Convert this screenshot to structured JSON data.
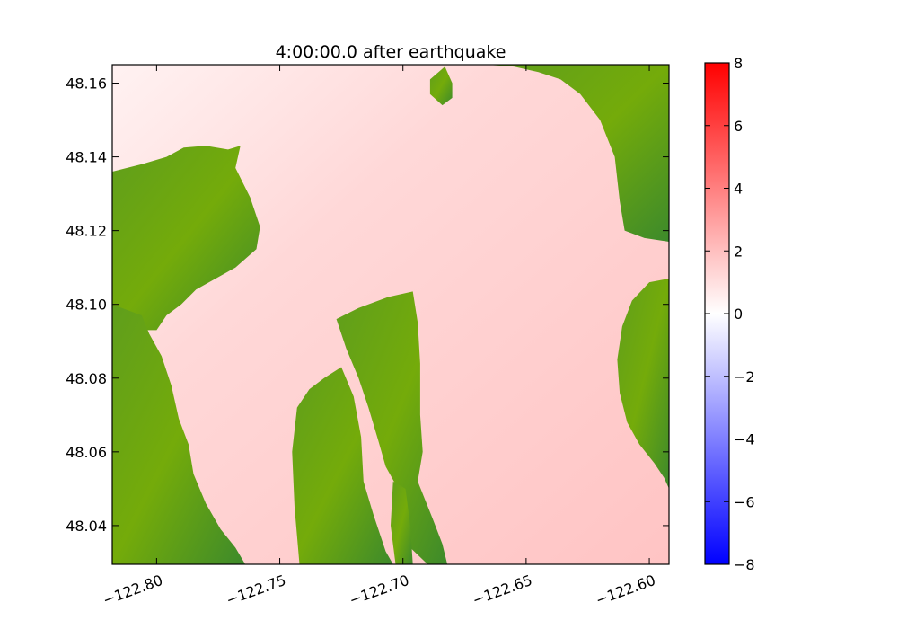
{
  "chart_data": {
    "type": "heatmap",
    "title": "4:00:00.0 after earthquake",
    "xlabel": "",
    "ylabel": "",
    "xlim": [
      -122.818,
      -122.592
    ],
    "ylim": [
      48.0295,
      48.165
    ],
    "x_ticks": [
      -122.8,
      -122.75,
      -122.7,
      -122.65,
      -122.6
    ],
    "x_tick_labels": [
      "−122.80",
      "−122.75",
      "−122.70",
      "−122.65",
      "−122.60"
    ],
    "y_ticks": [
      48.04,
      48.06,
      48.08,
      48.1,
      48.12,
      48.14,
      48.16
    ],
    "y_tick_labels": [
      "48.04",
      "48.06",
      "48.08",
      "48.10",
      "48.12",
      "48.14",
      "48.16"
    ],
    "grid": false,
    "colorbar": {
      "min": -8,
      "max": 8,
      "ticks": [
        8,
        6,
        4,
        2,
        0,
        -2,
        -4,
        -6,
        -8
      ],
      "tick_labels": [
        "8",
        "6",
        "4",
        "2",
        "0",
        "−2",
        "−4",
        "−6",
        "−8"
      ],
      "colors": [
        "#0000ff",
        "#ffffff",
        "#ff0000"
      ]
    },
    "water_color": "#ffc8c8",
    "land_colors": [
      "#6aa80a",
      "#3b8a2a"
    ],
    "land_regions": [
      {
        "name": "west-upper",
        "points": [
          [
            -122.818,
            48.136
          ],
          [
            -122.806,
            48.138
          ],
          [
            -122.796,
            48.14
          ],
          [
            -122.789,
            48.1425
          ],
          [
            -122.78,
            48.143
          ],
          [
            -122.771,
            48.142
          ],
          [
            -122.766,
            48.143
          ],
          [
            -122.768,
            48.137
          ],
          [
            -122.762,
            48.129
          ],
          [
            -122.758,
            48.121
          ],
          [
            -122.7595,
            48.115
          ],
          [
            -122.768,
            48.11
          ],
          [
            -122.776,
            48.107
          ],
          [
            -122.784,
            48.104
          ],
          [
            -122.79,
            48.1
          ],
          [
            -122.796,
            48.097
          ],
          [
            -122.8,
            48.093
          ],
          [
            -122.818,
            48.093
          ]
        ]
      },
      {
        "name": "west-lower",
        "points": [
          [
            -122.818,
            48.1
          ],
          [
            -122.806,
            48.097
          ],
          [
            -122.803,
            48.092
          ],
          [
            -122.798,
            48.086
          ],
          [
            -122.794,
            48.078
          ],
          [
            -122.791,
            48.069
          ],
          [
            -122.787,
            48.062
          ],
          [
            -122.785,
            48.054
          ],
          [
            -122.78,
            48.046
          ],
          [
            -122.774,
            48.039
          ],
          [
            -122.768,
            48.034
          ],
          [
            -122.764,
            48.0295
          ],
          [
            -122.818,
            48.0295
          ]
        ]
      },
      {
        "name": "middle-strip",
        "points": [
          [
            -122.732,
            48.08
          ],
          [
            -122.725,
            48.083
          ],
          [
            -122.72,
            48.075
          ],
          [
            -122.717,
            48.064
          ],
          [
            -122.716,
            48.052
          ],
          [
            -122.712,
            48.043
          ],
          [
            -122.707,
            48.033
          ],
          [
            -122.704,
            48.0295
          ],
          [
            -122.742,
            48.0295
          ],
          [
            -122.744,
            48.045
          ],
          [
            -122.745,
            48.06
          ],
          [
            -122.743,
            48.072
          ],
          [
            -122.738,
            48.077
          ]
        ]
      },
      {
        "name": "east-peninsula",
        "points": [
          [
            -122.727,
            48.096
          ],
          [
            -122.718,
            48.099
          ],
          [
            -122.706,
            48.102
          ],
          [
            -122.696,
            48.1035
          ],
          [
            -122.694,
            48.095
          ],
          [
            -122.693,
            48.084
          ],
          [
            -122.693,
            48.07
          ],
          [
            -122.692,
            48.06
          ],
          [
            -122.694,
            48.052
          ],
          [
            -122.688,
            48.042
          ],
          [
            -122.684,
            48.035
          ],
          [
            -122.682,
            48.0295
          ],
          [
            -122.69,
            48.0295
          ],
          [
            -122.697,
            48.034
          ],
          [
            -122.7,
            48.042
          ],
          [
            -122.702,
            48.05
          ],
          [
            -122.707,
            48.056
          ],
          [
            -122.71,
            48.063
          ],
          [
            -122.714,
            48.072
          ],
          [
            -122.718,
            48.08
          ],
          [
            -122.723,
            48.088
          ]
        ]
      },
      {
        "name": "small-bar",
        "points": [
          [
            -122.704,
            48.052
          ],
          [
            -122.699,
            48.05
          ],
          [
            -122.697,
            48.04
          ],
          [
            -122.696,
            48.0295
          ],
          [
            -122.703,
            48.0295
          ],
          [
            -122.705,
            48.04
          ]
        ]
      },
      {
        "name": "north-islet",
        "points": [
          [
            -122.689,
            48.161
          ],
          [
            -122.683,
            48.1645
          ],
          [
            -122.68,
            48.16
          ],
          [
            -122.68,
            48.156
          ],
          [
            -122.684,
            48.154
          ],
          [
            -122.689,
            48.157
          ]
        ]
      },
      {
        "name": "east-upper",
        "points": [
          [
            -122.666,
            48.165
          ],
          [
            -122.592,
            48.165
          ],
          [
            -122.592,
            48.117
          ],
          [
            -122.602,
            48.118
          ],
          [
            -122.61,
            48.12
          ],
          [
            -122.612,
            48.128
          ],
          [
            -122.614,
            48.14
          ],
          [
            -122.62,
            48.15
          ],
          [
            -122.628,
            48.157
          ],
          [
            -122.636,
            48.161
          ],
          [
            -122.645,
            48.163
          ],
          [
            -122.655,
            48.1645
          ]
        ]
      },
      {
        "name": "east-lower",
        "points": [
          [
            -122.592,
            48.107
          ],
          [
            -122.6,
            48.106
          ],
          [
            -122.607,
            48.101
          ],
          [
            -122.611,
            48.094
          ],
          [
            -122.613,
            48.085
          ],
          [
            -122.612,
            48.076
          ],
          [
            -122.609,
            48.068
          ],
          [
            -122.604,
            48.062
          ],
          [
            -122.598,
            48.057
          ],
          [
            -122.594,
            48.053
          ],
          [
            -122.592,
            48.05
          ]
        ]
      }
    ]
  }
}
